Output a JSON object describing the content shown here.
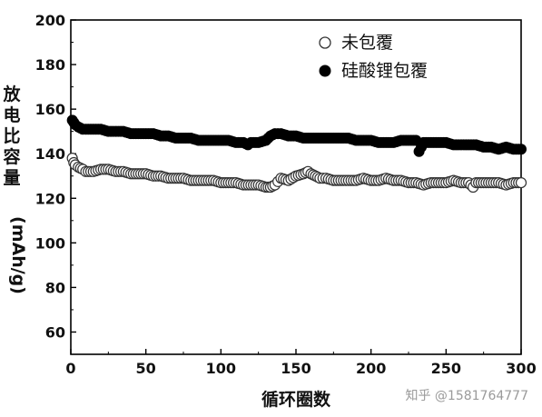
{
  "chart_data": {
    "type": "scatter",
    "xlabel": "循环圈数",
    "ylabel": "放电比容量",
    "yunit": "(mAh/g)",
    "xlim": [
      0,
      300
    ],
    "ylim": [
      50,
      200
    ],
    "xticks": [
      0,
      50,
      100,
      150,
      200,
      250,
      300
    ],
    "yticks": [
      60,
      80,
      100,
      120,
      140,
      160,
      180,
      200
    ],
    "grid": false,
    "legend_position": "top-right",
    "series": [
      {
        "name": "未包覆",
        "marker": "open-circle",
        "color": "#333333",
        "x": [
          1,
          2,
          3,
          5,
          8,
          10,
          15,
          20,
          25,
          30,
          35,
          40,
          45,
          50,
          55,
          60,
          65,
          70,
          75,
          80,
          85,
          90,
          95,
          100,
          105,
          110,
          115,
          120,
          125,
          130,
          133,
          136,
          140,
          145,
          150,
          155,
          158,
          160,
          163,
          166,
          170,
          175,
          180,
          185,
          190,
          195,
          200,
          205,
          210,
          215,
          220,
          225,
          230,
          235,
          240,
          245,
          250,
          255,
          260,
          265,
          268,
          270,
          275,
          280,
          285,
          290,
          295,
          300
        ],
        "y": [
          138,
          136,
          135,
          134,
          133,
          132,
          132,
          133,
          133,
          132,
          132,
          131,
          131,
          131,
          130,
          130,
          129,
          129,
          129,
          128,
          128,
          128,
          128,
          127,
          127,
          127,
          126,
          126,
          126,
          125,
          125,
          126,
          129,
          128,
          130,
          131,
          132,
          131,
          130,
          129,
          129,
          128,
          128,
          128,
          128,
          129,
          128,
          128,
          129,
          128,
          128,
          127,
          127,
          126,
          127,
          127,
          127,
          128,
          127,
          127,
          125,
          127,
          127,
          127,
          127,
          126,
          127,
          127
        ]
      },
      {
        "name": "硅酸锂包覆",
        "marker": "filled-circle",
        "color": "#000000",
        "x": [
          1,
          2,
          3,
          5,
          8,
          10,
          15,
          20,
          25,
          30,
          35,
          40,
          45,
          50,
          55,
          60,
          65,
          70,
          75,
          80,
          85,
          90,
          95,
          100,
          105,
          110,
          115,
          118,
          120,
          125,
          130,
          133,
          136,
          140,
          145,
          150,
          155,
          160,
          165,
          170,
          175,
          180,
          185,
          190,
          195,
          200,
          205,
          210,
          215,
          220,
          225,
          230,
          232,
          235,
          240,
          245,
          250,
          255,
          260,
          265,
          270,
          275,
          280,
          285,
          290,
          295,
          300
        ],
        "y": [
          155,
          154,
          153,
          152,
          151,
          151,
          151,
          151,
          150,
          150,
          150,
          149,
          149,
          149,
          149,
          148,
          148,
          147,
          147,
          147,
          146,
          146,
          146,
          146,
          146,
          145,
          145,
          144,
          145,
          145,
          146,
          148,
          149,
          149,
          148,
          148,
          147,
          147,
          147,
          147,
          147,
          147,
          147,
          146,
          146,
          146,
          145,
          145,
          145,
          146,
          146,
          146,
          141,
          145,
          145,
          145,
          145,
          144,
          144,
          144,
          144,
          143,
          143,
          142,
          143,
          142,
          142
        ]
      }
    ]
  },
  "watermark": "知乎 @1581764777"
}
